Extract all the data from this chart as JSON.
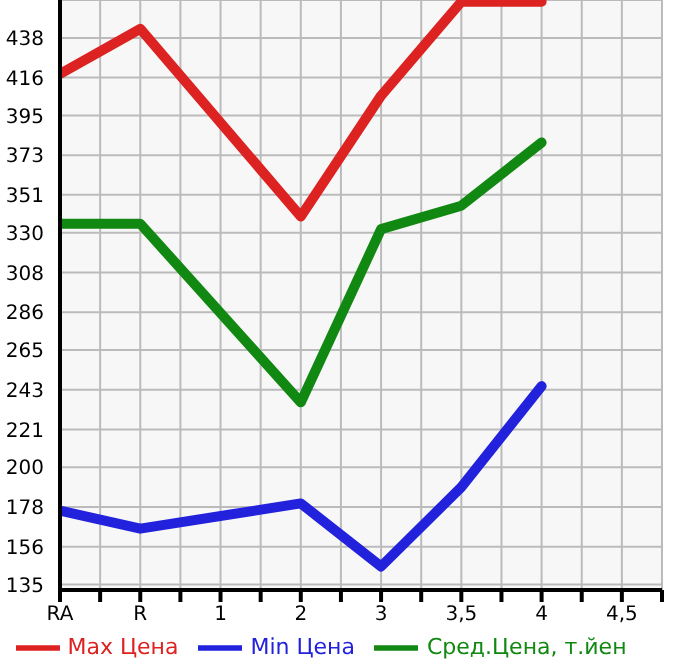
{
  "chart_data": {
    "type": "line",
    "categories": [
      "RA",
      "R",
      "1",
      "2",
      "3",
      "3,5",
      "4",
      "4,5"
    ],
    "series": [
      {
        "name": "Max Цена",
        "color": "#dd2222",
        "values": [
          418,
          443,
          null,
          339,
          406,
          458,
          458,
          null
        ]
      },
      {
        "name": "Min Цена",
        "color": "#2222dd",
        "values": [
          176,
          166,
          null,
          180,
          145,
          189,
          245,
          null
        ]
      },
      {
        "name": "Сред.Цена, т.йен",
        "color": "#118811",
        "values": [
          335,
          335,
          null,
          236,
          332,
          345,
          380,
          null
        ]
      }
    ],
    "ylim": [
      132,
      459
    ],
    "yticks": [
      135,
      156,
      178,
      200,
      221,
      243,
      265,
      286,
      308,
      330,
      351,
      373,
      395,
      416,
      438
    ],
    "grid": true,
    "legend": "bottom",
    "marker": "none",
    "line_style": "solid"
  }
}
